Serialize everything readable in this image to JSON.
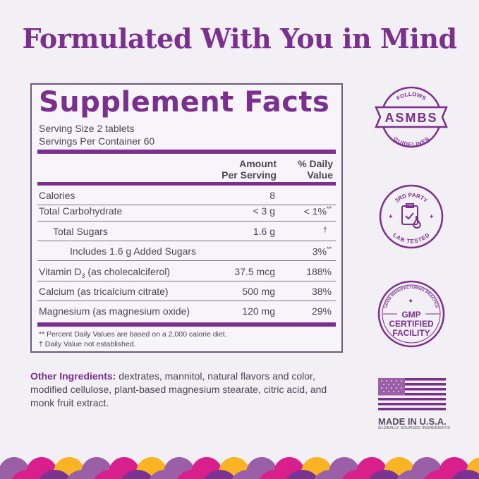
{
  "headline": "Formulated With You in Mind",
  "facts": {
    "title": "Supplement Facts",
    "serving_size": "Serving Size 2 tablets",
    "servings_per_container": "Servings Per Container 60",
    "col_amount_1": "Amount",
    "col_amount_2": "Per Serving",
    "col_dv_1": "% Daily",
    "col_dv_2": "Value",
    "rows": [
      {
        "name": "Calories",
        "amount": "8",
        "dv": ""
      },
      {
        "name": "Total Carbohydrate",
        "amount": "< 3 g",
        "dv": "< 1%",
        "dv_mark": "**"
      },
      {
        "name": "Total Sugars",
        "amount": "1.6 g",
        "dv": "†"
      },
      {
        "name": "Includes 1.6 g Added Sugars",
        "amount": "",
        "dv": "3%",
        "dv_mark": "**"
      },
      {
        "name": "Vitamin D",
        "name_sub": "3",
        "name_rest": " (as cholecalciferol)",
        "amount": "37.5 mcg",
        "dv": "188%"
      },
      {
        "name": "Calcium (as tricalcium citrate)",
        "amount": "500 mg",
        "dv": "38%"
      },
      {
        "name": "Magnesium (as magnesium oxide)",
        "amount": "120 mg",
        "dv": "29%"
      }
    ],
    "footnote_1": "** Percent Daily Values are based on a 2,000 calorie diet.",
    "footnote_2": "†  Daily Value not established."
  },
  "other_ingredients": {
    "label": "Other Ingredients:",
    "text": " dextrates, mannitol, natural flavors and color, modified cellulose, plant-based magnesium stearate, citric acid, and monk fruit extract."
  },
  "badges": {
    "asmbs": {
      "top": "FOLLOWS",
      "center": "ASMBS",
      "bottom": "GUIDELINES"
    },
    "lab": {
      "top": "3RD PARTY",
      "bottom": "LAB TESTED"
    },
    "gmp": {
      "ring": "GOOD MANUFACTURING PRACTICE",
      "line1": "GMP",
      "line2": "CERTIFIED",
      "line3": "FACILITY"
    },
    "usa": {
      "title": "MADE IN U.S.A.",
      "subtitle": "GLOBALLY SOURCED INGREDIENTS"
    }
  },
  "colors": {
    "brand_purple": "#7b2f8e",
    "background": "#f2eff5",
    "magenta": "#d81f8c",
    "yellow": "#f9b423",
    "light_purple": "#9b5fa8",
    "dark_purple": "#7b3393"
  }
}
